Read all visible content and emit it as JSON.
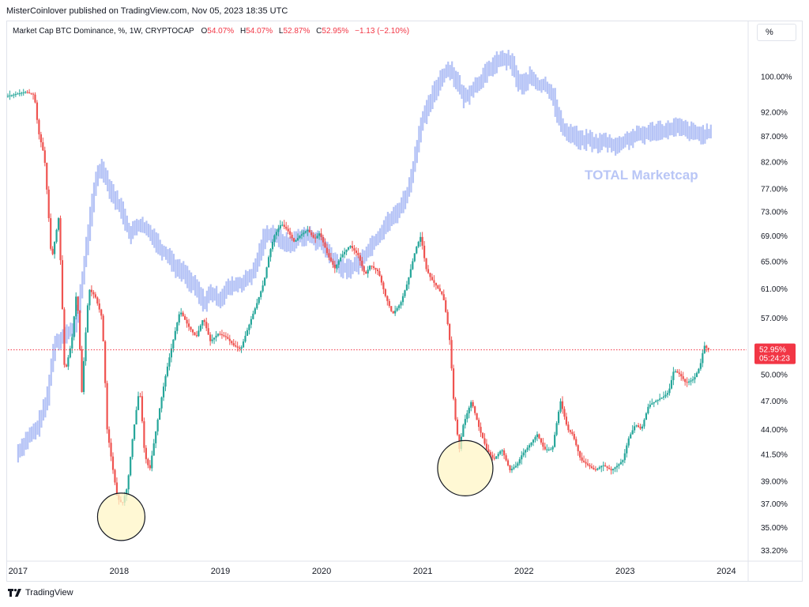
{
  "publisher": "MisterCoinlover published on TradingView.com, Nov 05, 2023 18:35 UTC",
  "legend": {
    "symbol": "Market Cap BTC Dominance, %, 1W, CRYPTOCAP",
    "o_label": "O",
    "o_value": "54.07%",
    "h_label": "H",
    "h_value": "54.07%",
    "l_label": "L",
    "l_value": "52.87%",
    "c_label": "C",
    "c_value": "52.95%",
    "change": "−1.13 (−2.10%)"
  },
  "scale_button": "%",
  "footer": "TradingView",
  "colors": {
    "up": "#26a69a",
    "down": "#ef5350",
    "total_line": "#a8b8f5",
    "price_label": "#f23645",
    "circle_fill": "#fff5c6"
  },
  "chart_data": {
    "type": "candlestick",
    "title": "",
    "y_scale": "log",
    "ylim": [
      32.5,
      108
    ],
    "y_ticks": [
      "100.00%",
      "92.00%",
      "87.00%",
      "82.00%",
      "77.00%",
      "73.00%",
      "69.00%",
      "65.00%",
      "61.00%",
      "57.00%",
      "53.00%",
      "50.00%",
      "47.00%",
      "44.00%",
      "41.50%",
      "39.00%",
      "37.00%",
      "35.00%",
      "33.20%"
    ],
    "x_ticks": [
      "2017",
      "2018",
      "2019",
      "2020",
      "2021",
      "2022",
      "2023",
      "2024"
    ],
    "xlim": [
      2016.9,
      2024.2
    ],
    "last_price": {
      "value": 52.95,
      "label": "52.95%",
      "countdown": "05:24:23"
    },
    "overlay_label": "TOTAL Marketcap",
    "btc_dominance": {
      "name": "Market Cap BTC Dominance",
      "points": [
        [
          2016.9,
          95.5
        ],
        [
          2017.0,
          96
        ],
        [
          2017.1,
          96.5
        ],
        [
          2017.18,
          95.8
        ],
        [
          2017.22,
          88
        ],
        [
          2017.28,
          83
        ],
        [
          2017.35,
          65
        ],
        [
          2017.42,
          72
        ],
        [
          2017.48,
          50
        ],
        [
          2017.55,
          54
        ],
        [
          2017.6,
          61
        ],
        [
          2017.65,
          48
        ],
        [
          2017.72,
          61
        ],
        [
          2017.78,
          60
        ],
        [
          2017.85,
          57
        ],
        [
          2017.9,
          44
        ],
        [
          2017.95,
          40.5
        ],
        [
          2018.0,
          37.5
        ],
        [
          2018.05,
          37
        ],
        [
          2018.1,
          38.5
        ],
        [
          2018.15,
          43
        ],
        [
          2018.22,
          48.5
        ],
        [
          2018.27,
          41.5
        ],
        [
          2018.32,
          40
        ],
        [
          2018.4,
          45
        ],
        [
          2018.48,
          50
        ],
        [
          2018.55,
          54
        ],
        [
          2018.62,
          58
        ],
        [
          2018.7,
          56
        ],
        [
          2018.78,
          54.5
        ],
        [
          2018.85,
          57
        ],
        [
          2018.92,
          54
        ],
        [
          2019.0,
          55
        ],
        [
          2019.08,
          54.5
        ],
        [
          2019.15,
          53.5
        ],
        [
          2019.22,
          53
        ],
        [
          2019.3,
          56
        ],
        [
          2019.38,
          59
        ],
        [
          2019.45,
          62
        ],
        [
          2019.5,
          66
        ],
        [
          2019.55,
          69
        ],
        [
          2019.62,
          71
        ],
        [
          2019.68,
          70
        ],
        [
          2019.75,
          68
        ],
        [
          2019.8,
          69
        ],
        [
          2019.88,
          70
        ],
        [
          2019.95,
          68.5
        ],
        [
          2020.0,
          69.5
        ],
        [
          2020.08,
          66
        ],
        [
          2020.15,
          64
        ],
        [
          2020.22,
          66
        ],
        [
          2020.3,
          67.5
        ],
        [
          2020.38,
          66
        ],
        [
          2020.45,
          63
        ],
        [
          2020.5,
          64.5
        ],
        [
          2020.58,
          63.5
        ],
        [
          2020.65,
          60
        ],
        [
          2020.72,
          57.5
        ],
        [
          2020.8,
          59
        ],
        [
          2020.87,
          62
        ],
        [
          2020.95,
          67
        ],
        [
          2021.0,
          69
        ],
        [
          2021.05,
          64
        ],
        [
          2021.1,
          62.5
        ],
        [
          2021.15,
          61.5
        ],
        [
          2021.22,
          60
        ],
        [
          2021.28,
          55
        ],
        [
          2021.33,
          46
        ],
        [
          2021.38,
          42
        ],
        [
          2021.42,
          44.5
        ],
        [
          2021.5,
          47
        ],
        [
          2021.58,
          44
        ],
        [
          2021.65,
          42
        ],
        [
          2021.72,
          41
        ],
        [
          2021.8,
          42
        ],
        [
          2021.88,
          40
        ],
        [
          2021.95,
          40.5
        ],
        [
          2022.0,
          41.5
        ],
        [
          2022.08,
          42.5
        ],
        [
          2022.15,
          43.5
        ],
        [
          2022.22,
          42
        ],
        [
          2022.3,
          42
        ],
        [
          2022.38,
          47
        ],
        [
          2022.45,
          44
        ],
        [
          2022.5,
          43.5
        ],
        [
          2022.58,
          41
        ],
        [
          2022.65,
          40.5
        ],
        [
          2022.72,
          40
        ],
        [
          2022.8,
          40.5
        ],
        [
          2022.88,
          40
        ],
        [
          2022.95,
          40.5
        ],
        [
          2023.0,
          41
        ],
        [
          2023.05,
          43
        ],
        [
          2023.12,
          44.5
        ],
        [
          2023.18,
          44
        ],
        [
          2023.25,
          46.5
        ],
        [
          2023.32,
          47
        ],
        [
          2023.4,
          47.5
        ],
        [
          2023.45,
          48
        ],
        [
          2023.5,
          50.5
        ],
        [
          2023.56,
          50
        ],
        [
          2023.62,
          49
        ],
        [
          2023.7,
          49.5
        ],
        [
          2023.76,
          51
        ],
        [
          2023.8,
          53.5
        ],
        [
          2023.84,
          52.95
        ]
      ]
    },
    "total_marketcap": {
      "name": "TOTAL Marketcap",
      "points": [
        [
          2017.0,
          41.5
        ],
        [
          2017.1,
          43
        ],
        [
          2017.2,
          44
        ],
        [
          2017.3,
          47
        ],
        [
          2017.38,
          54
        ],
        [
          2017.45,
          54.5
        ],
        [
          2017.5,
          55
        ],
        [
          2017.58,
          56
        ],
        [
          2017.65,
          62
        ],
        [
          2017.72,
          71
        ],
        [
          2017.8,
          80
        ],
        [
          2017.85,
          81
        ],
        [
          2017.9,
          78
        ],
        [
          2017.98,
          75
        ],
        [
          2018.05,
          73
        ],
        [
          2018.12,
          69
        ],
        [
          2018.2,
          71
        ],
        [
          2018.28,
          70
        ],
        [
          2018.35,
          69
        ],
        [
          2018.42,
          67
        ],
        [
          2018.5,
          66
        ],
        [
          2018.58,
          64
        ],
        [
          2018.65,
          63.5
        ],
        [
          2018.72,
          62
        ],
        [
          2018.78,
          61
        ],
        [
          2018.85,
          59
        ],
        [
          2018.92,
          60.5
        ],
        [
          2019.0,
          59.5
        ],
        [
          2019.08,
          61
        ],
        [
          2019.15,
          61.5
        ],
        [
          2019.25,
          62
        ],
        [
          2019.35,
          63.5
        ],
        [
          2019.45,
          69
        ],
        [
          2019.52,
          69.5
        ],
        [
          2019.6,
          68.5
        ],
        [
          2019.7,
          67.5
        ],
        [
          2019.8,
          69
        ],
        [
          2019.9,
          69
        ],
        [
          2020.0,
          68
        ],
        [
          2020.1,
          66
        ],
        [
          2020.2,
          64
        ],
        [
          2020.3,
          64
        ],
        [
          2020.4,
          65
        ],
        [
          2020.5,
          67.5
        ],
        [
          2020.58,
          69
        ],
        [
          2020.65,
          71
        ],
        [
          2020.72,
          72
        ],
        [
          2020.8,
          74
        ],
        [
          2020.88,
          77
        ],
        [
          2020.95,
          84
        ],
        [
          2021.0,
          90
        ],
        [
          2021.05,
          92
        ],
        [
          2021.12,
          96
        ],
        [
          2021.2,
          100
        ],
        [
          2021.28,
          102
        ],
        [
          2021.35,
          99
        ],
        [
          2021.42,
          95
        ],
        [
          2021.5,
          97
        ],
        [
          2021.58,
          99
        ],
        [
          2021.65,
          101
        ],
        [
          2021.72,
          103
        ],
        [
          2021.78,
          104
        ],
        [
          2021.84,
          104
        ],
        [
          2021.9,
          103
        ],
        [
          2021.95,
          99
        ],
        [
          2022.0,
          98
        ],
        [
          2022.08,
          100
        ],
        [
          2022.15,
          98
        ],
        [
          2022.22,
          98
        ],
        [
          2022.3,
          96
        ],
        [
          2022.35,
          91
        ],
        [
          2022.42,
          88
        ],
        [
          2022.5,
          87.5
        ],
        [
          2022.58,
          86
        ],
        [
          2022.65,
          86.5
        ],
        [
          2022.72,
          85.5
        ],
        [
          2022.8,
          86
        ],
        [
          2022.88,
          85.5
        ],
        [
          2022.95,
          85
        ],
        [
          2023.0,
          86
        ],
        [
          2023.05,
          86.5
        ],
        [
          2023.12,
          87
        ],
        [
          2023.2,
          87.5
        ],
        [
          2023.28,
          88
        ],
        [
          2023.35,
          88.5
        ],
        [
          2023.42,
          88
        ],
        [
          2023.5,
          89
        ],
        [
          2023.58,
          88.5
        ],
        [
          2023.65,
          88
        ],
        [
          2023.72,
          87.5
        ],
        [
          2023.8,
          87.5
        ],
        [
          2023.85,
          87.5
        ]
      ]
    },
    "annotations": [
      {
        "type": "circle",
        "center": [
          2018.02,
          35.9
        ]
      },
      {
        "type": "circle",
        "center": [
          2021.42,
          40.2
        ]
      }
    ]
  }
}
